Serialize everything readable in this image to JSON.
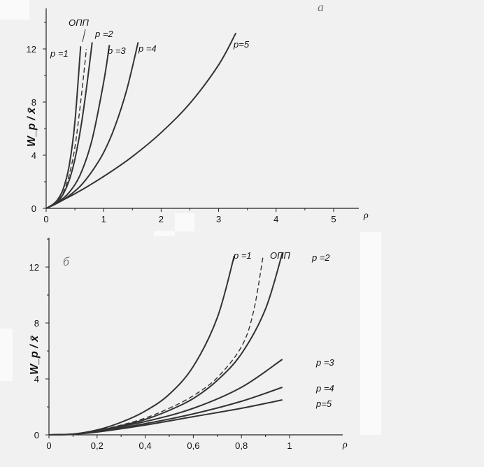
{
  "chart_data": [
    {
      "type": "line",
      "panel_label": "а",
      "ylabel": "W_p / x̄",
      "xlabel": "ρ",
      "xlim": [
        0,
        5.5
      ],
      "ylim": [
        0,
        14
      ],
      "x_ticks": [
        "0",
        "1",
        "2",
        "3",
        "4",
        "5"
      ],
      "y_ticks": [
        "0",
        "4",
        "8",
        "12"
      ],
      "series": [
        {
          "name": "p =1",
          "dashed": false,
          "x": [
            0,
            0.1,
            0.2,
            0.3,
            0.4,
            0.5,
            0.6
          ],
          "y": [
            0,
            0.25,
            0.65,
            1.5,
            3.2,
            6.5,
            12.2
          ]
        },
        {
          "name": "ОПП",
          "dashed": true,
          "x": [
            0,
            0.1,
            0.2,
            0.3,
            0.4,
            0.5,
            0.6,
            0.7
          ],
          "y": [
            0,
            0.2,
            0.55,
            1.2,
            2.5,
            4.6,
            8.0,
            12.0
          ]
        },
        {
          "name": "p =2",
          "dashed": false,
          "x": [
            0,
            0.1,
            0.2,
            0.3,
            0.4,
            0.5,
            0.6,
            0.7,
            0.8
          ],
          "y": [
            0,
            0.2,
            0.5,
            1.1,
            2.1,
            3.7,
            6.0,
            9.0,
            12.5
          ]
        },
        {
          "name": "p =3",
          "dashed": false,
          "x": [
            0,
            0.2,
            0.4,
            0.6,
            0.8,
            1.0,
            1.1
          ],
          "y": [
            0,
            0.45,
            1.2,
            2.6,
            5.2,
            9.5,
            12.3
          ]
        },
        {
          "name": "p =4",
          "dashed": false,
          "x": [
            0,
            0.2,
            0.4,
            0.6,
            0.8,
            1.0,
            1.2,
            1.4,
            1.6
          ],
          "y": [
            0,
            0.4,
            0.95,
            1.7,
            2.8,
            4.2,
            6.2,
            8.9,
            12.5
          ]
        },
        {
          "name": "p=5",
          "dashed": false,
          "x": [
            0,
            0.5,
            1.0,
            1.5,
            2.0,
            2.5,
            3.0,
            3.3
          ],
          "y": [
            0,
            1.1,
            2.4,
            3.9,
            5.7,
            7.9,
            10.8,
            13.2
          ]
        }
      ]
    },
    {
      "type": "line",
      "panel_label": "б",
      "ylabel": "W_p / x̄",
      "xlabel": "ρ",
      "xlim": [
        0,
        1.1
      ],
      "ylim": [
        0,
        14
      ],
      "x_ticks": [
        "0",
        "0,2",
        "0,4",
        "0,6",
        "0,8",
        "1"
      ],
      "y_ticks": [
        "0",
        "4",
        "8",
        "12"
      ],
      "series": [
        {
          "name": "p =1",
          "dashed": false,
          "x": [
            0,
            0.1,
            0.2,
            0.3,
            0.4,
            0.5,
            0.6,
            0.7,
            0.77
          ],
          "y": [
            0,
            0.05,
            0.35,
            0.9,
            1.7,
            2.9,
            4.9,
            8.4,
            12.8
          ]
        },
        {
          "name": "ОПП",
          "dashed": true,
          "x": [
            0,
            0.1,
            0.2,
            0.3,
            0.4,
            0.5,
            0.6,
            0.7,
            0.8,
            0.85,
            0.89
          ],
          "y": [
            0,
            0.05,
            0.3,
            0.7,
            1.2,
            1.9,
            2.8,
            4.1,
            6.3,
            8.8,
            12.8
          ]
        },
        {
          "name": "p =2",
          "dashed": false,
          "x": [
            0,
            0.1,
            0.2,
            0.3,
            0.4,
            0.5,
            0.6,
            0.7,
            0.8,
            0.9,
            0.97
          ],
          "y": [
            0,
            0.05,
            0.3,
            0.65,
            1.1,
            1.75,
            2.6,
            3.9,
            5.8,
            9.0,
            13.0
          ]
        },
        {
          "name": "p =3",
          "dashed": false,
          "x": [
            0,
            0.1,
            0.2,
            0.4,
            0.6,
            0.8,
            0.97
          ],
          "y": [
            0,
            0.05,
            0.3,
            0.95,
            1.9,
            3.4,
            5.4
          ]
        },
        {
          "name": "p =4",
          "dashed": false,
          "x": [
            0,
            0.1,
            0.2,
            0.4,
            0.6,
            0.8,
            0.97
          ],
          "y": [
            0,
            0.05,
            0.25,
            0.8,
            1.5,
            2.4,
            3.4
          ]
        },
        {
          "name": "p=5",
          "dashed": false,
          "x": [
            0,
            0.1,
            0.2,
            0.4,
            0.6,
            0.8,
            0.97
          ],
          "y": [
            0,
            0.05,
            0.2,
            0.7,
            1.3,
            1.9,
            2.5
          ]
        }
      ]
    }
  ]
}
